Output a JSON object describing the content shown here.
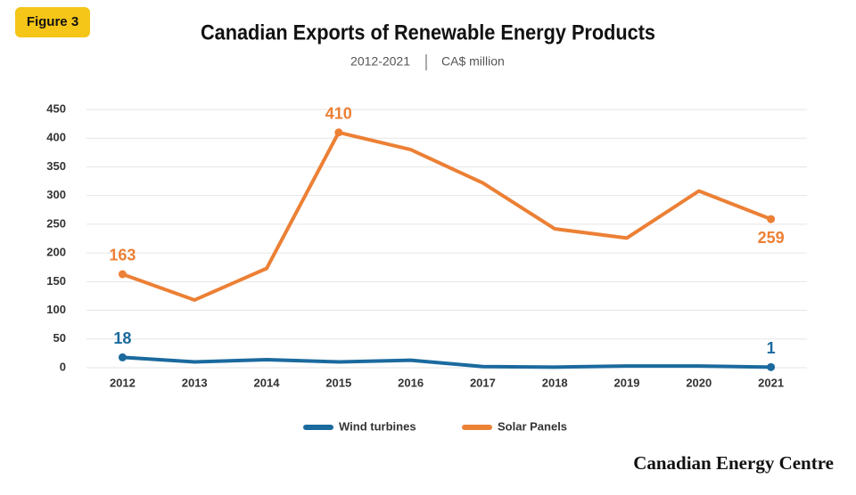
{
  "figure_label": "Figure 3",
  "footer": "Canadian Energy Centre",
  "chart_data": {
    "type": "line",
    "title": "Canadian Exports of Renewable Energy Products",
    "subtitle": [
      "2012-2021",
      "CA$ million"
    ],
    "categories": [
      "2012",
      "2013",
      "2014",
      "2015",
      "2016",
      "2017",
      "2018",
      "2019",
      "2020",
      "2021"
    ],
    "series": [
      {
        "name": "Wind turbines",
        "color": "#1b6a9e",
        "values": [
          18,
          10,
          14,
          10,
          13,
          2,
          1,
          3,
          3,
          1
        ],
        "label_indices": [
          0,
          9
        ]
      },
      {
        "name": "Solar Panels",
        "color": "#ec8035",
        "values": [
          163,
          118,
          173,
          410,
          380,
          322,
          242,
          226,
          308,
          259
        ],
        "label_indices": [
          0,
          3,
          9
        ]
      }
    ],
    "ylim": [
      0,
      450
    ],
    "yticks": [
      0,
      50,
      100,
      150,
      200,
      250,
      300,
      350,
      400,
      450
    ],
    "grid": true,
    "legend": "bottom"
  }
}
